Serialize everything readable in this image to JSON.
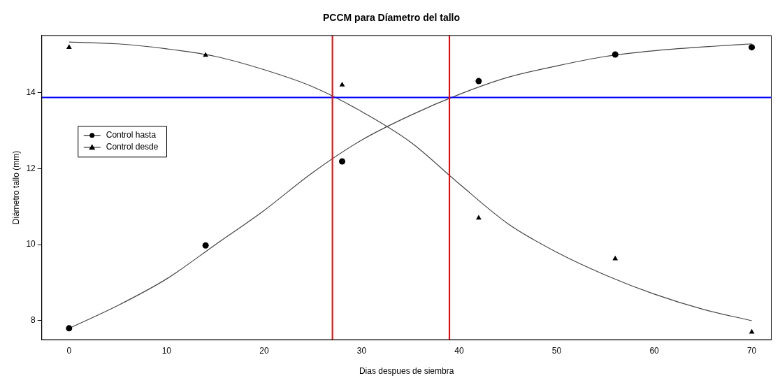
{
  "chart_data": {
    "type": "scatter",
    "title": "PCCM para Díametro del tallo",
    "xlabel": "Dias despues de siembra",
    "ylabel": "Diámetro tallo (mm)",
    "xlim": [
      -2.8,
      72
    ],
    "xticks": [
      0,
      10,
      20,
      30,
      40,
      50,
      60,
      70
    ],
    "ylim": [
      7.5,
      15.5
    ],
    "yticks": [
      8,
      10,
      12,
      14
    ],
    "grid": false,
    "legend": "left",
    "series": [
      {
        "name": "Control hasta",
        "type": "scatter",
        "marker": "circle",
        "color": "#000000",
        "x": [
          0,
          14,
          28,
          42,
          56,
          70
        ],
        "values": [
          7.8,
          9.98,
          12.19,
          14.3,
          15.0,
          15.19
        ]
      },
      {
        "name": "Control desde",
        "type": "scatter",
        "marker": "triangle",
        "color": "#000000",
        "x": [
          0,
          14,
          28,
          42,
          56,
          70
        ],
        "values": [
          15.19,
          14.98,
          14.2,
          10.7,
          9.63,
          7.7
        ]
      },
      {
        "type": "line",
        "marker": "none",
        "color": "#444444",
        "x": [
          0,
          5,
          10,
          15,
          20,
          25,
          30,
          35,
          40,
          45,
          50,
          55,
          60,
          65,
          70
        ],
        "values": [
          7.8,
          8.4,
          9.1,
          10.0,
          10.9,
          11.9,
          12.75,
          13.4,
          13.95,
          14.4,
          14.7,
          14.95,
          15.1,
          15.2,
          15.28
        ]
      },
      {
        "type": "line",
        "marker": "none",
        "color": "#444444",
        "x": [
          0,
          5,
          10,
          15,
          20,
          25,
          30,
          35,
          40,
          45,
          50,
          55,
          60,
          65,
          70
        ],
        "values": [
          15.33,
          15.28,
          15.15,
          14.95,
          14.6,
          14.15,
          13.5,
          12.7,
          11.6,
          10.55,
          9.8,
          9.2,
          8.7,
          8.3,
          8.0
        ]
      }
    ],
    "ref_lines": [
      {
        "axis": "y",
        "value": 13.87,
        "color": "#0000ff"
      },
      {
        "axis": "x",
        "value": 27,
        "color": "#ff0000"
      },
      {
        "axis": "x",
        "value": 39,
        "color": "#ff0000"
      }
    ]
  }
}
